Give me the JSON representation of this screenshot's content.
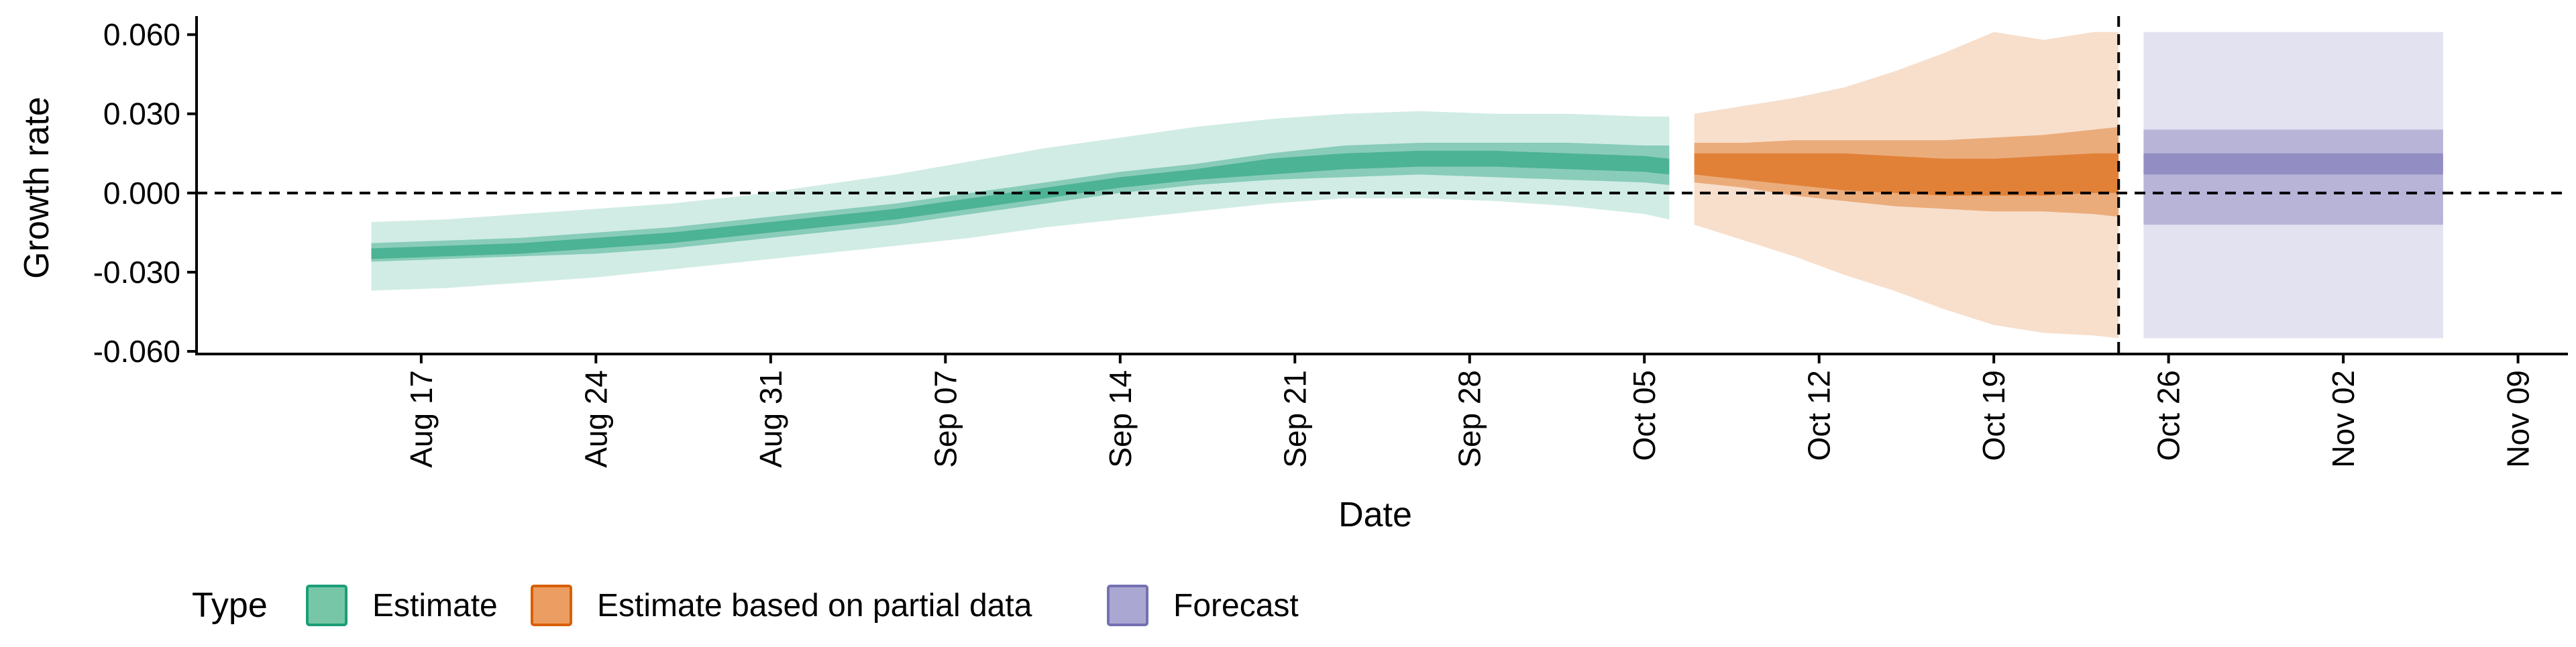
{
  "chart_data": {
    "type": "area",
    "xlabel": "Date",
    "ylabel": "Growth rate",
    "x_ticks": [
      "2020-08-17",
      "2020-08-24",
      "2020-08-31",
      "2020-09-07",
      "2020-09-14",
      "2020-09-21",
      "2020-09-28",
      "2020-10-05",
      "2020-10-12",
      "2020-10-19",
      "2020-10-26",
      "2020-11-02",
      "2020-11-09"
    ],
    "x_tick_labels": [
      "Aug 17",
      "Aug 24",
      "Aug 31",
      "Sep 07",
      "Sep 14",
      "Sep 21",
      "Sep 28",
      "Oct 05",
      "Oct 12",
      "Oct 19",
      "Oct 26",
      "Nov 02",
      "Nov 09"
    ],
    "y_ticks": [
      -0.06,
      -0.03,
      0.0,
      0.03,
      0.06
    ],
    "y_tick_labels": [
      "-0.060",
      "-0.030",
      "0.000",
      "0.030",
      "0.060"
    ],
    "xlim": [
      "2020-08-08",
      "2020-11-11"
    ],
    "ylim": [
      -0.061,
      0.066
    ],
    "reference_lines": {
      "horizontal_y": 0.0,
      "vertical_date": "2020-10-24"
    },
    "legend": {
      "title": "Type",
      "position": "bottom-left",
      "items": [
        {
          "label": "Estimate",
          "fill": "#78c6a8",
          "stroke": "#1b9e77"
        },
        {
          "label": "Estimate based on partial data",
          "fill": "#ec9e62",
          "stroke": "#d95f02"
        },
        {
          "label": "Forecast",
          "fill": "#aaa8d2",
          "stroke": "#7570b3"
        }
      ]
    },
    "grid": false,
    "series": [
      {
        "name": "Estimate",
        "color": "#1b9e77",
        "x": [
          "2020-08-15",
          "2020-08-18",
          "2020-08-21",
          "2020-08-24",
          "2020-08-27",
          "2020-08-30",
          "2020-09-02",
          "2020-09-05",
          "2020-09-08",
          "2020-09-11",
          "2020-09-14",
          "2020-09-17",
          "2020-09-20",
          "2020-09-23",
          "2020-09-26",
          "2020-09-29",
          "2020-10-02",
          "2020-10-05",
          "2020-10-06"
        ],
        "median": [
          -0.023,
          -0.022,
          -0.021,
          -0.019,
          -0.017,
          -0.014,
          -0.011,
          -0.008,
          -0.004,
          0.0,
          0.004,
          0.007,
          0.01,
          0.012,
          0.013,
          0.013,
          0.012,
          0.011,
          0.01
        ],
        "lower_20": [
          -0.025,
          -0.024,
          -0.023,
          -0.021,
          -0.019,
          -0.016,
          -0.013,
          -0.01,
          -0.006,
          -0.002,
          0.002,
          0.005,
          0.007,
          0.009,
          0.01,
          0.01,
          0.009,
          0.008,
          0.007
        ],
        "upper_20": [
          -0.021,
          -0.02,
          -0.019,
          -0.017,
          -0.015,
          -0.012,
          -0.009,
          -0.006,
          -0.002,
          0.002,
          0.006,
          0.009,
          0.013,
          0.015,
          0.016,
          0.016,
          0.015,
          0.014,
          0.013
        ],
        "lower_50": [
          -0.026,
          -0.025,
          -0.024,
          -0.023,
          -0.021,
          -0.018,
          -0.015,
          -0.012,
          -0.008,
          -0.004,
          0.0,
          0.003,
          0.005,
          0.006,
          0.007,
          0.006,
          0.005,
          0.004,
          0.003
        ],
        "upper_50": [
          -0.019,
          -0.018,
          -0.017,
          -0.015,
          -0.013,
          -0.01,
          -0.007,
          -0.004,
          0.0,
          0.004,
          0.008,
          0.011,
          0.015,
          0.018,
          0.019,
          0.019,
          0.019,
          0.018,
          0.018
        ],
        "lower_90": [
          -0.037,
          -0.036,
          -0.034,
          -0.032,
          -0.029,
          -0.026,
          -0.023,
          -0.02,
          -0.017,
          -0.013,
          -0.01,
          -0.007,
          -0.004,
          -0.002,
          -0.002,
          -0.003,
          -0.005,
          -0.008,
          -0.01
        ],
        "upper_90": [
          -0.011,
          -0.01,
          -0.008,
          -0.006,
          -0.004,
          -0.001,
          0.003,
          0.007,
          0.012,
          0.017,
          0.021,
          0.025,
          0.028,
          0.03,
          0.031,
          0.03,
          0.03,
          0.029,
          0.029
        ]
      },
      {
        "name": "Estimate based on partial data",
        "color": "#d95f02",
        "x": [
          "2020-10-07",
          "2020-10-09",
          "2020-10-11",
          "2020-10-13",
          "2020-10-15",
          "2020-10-17",
          "2020-10-19",
          "2020-10-21",
          "2020-10-23",
          "2020-10-24"
        ],
        "median": [
          0.011,
          0.01,
          0.009,
          0.008,
          0.007,
          0.006,
          0.006,
          0.007,
          0.008,
          0.008
        ],
        "lower_20": [
          0.007,
          0.005,
          0.003,
          0.001,
          0.0,
          -0.001,
          -0.001,
          -0.001,
          0.0,
          0.0
        ],
        "upper_20": [
          0.015,
          0.015,
          0.015,
          0.015,
          0.014,
          0.013,
          0.013,
          0.014,
          0.015,
          0.015
        ],
        "lower_50": [
          0.004,
          0.002,
          -0.001,
          -0.003,
          -0.005,
          -0.006,
          -0.007,
          -0.007,
          -0.008,
          -0.009
        ],
        "upper_50": [
          0.019,
          0.019,
          0.02,
          0.02,
          0.02,
          0.02,
          0.021,
          0.022,
          0.024,
          0.025
        ],
        "lower_90": [
          -0.012,
          -0.018,
          -0.024,
          -0.031,
          -0.037,
          -0.044,
          -0.05,
          -0.053,
          -0.054,
          -0.055
        ],
        "upper_90": [
          0.03,
          0.033,
          0.036,
          0.04,
          0.046,
          0.053,
          0.061,
          0.058,
          0.061,
          0.061
        ]
      },
      {
        "name": "Forecast",
        "color": "#7570b3",
        "x": [
          "2020-10-25",
          "2020-11-06"
        ],
        "median": [
          0.013,
          0.013
        ],
        "lower_20": [
          0.007,
          0.007
        ],
        "upper_20": [
          0.015,
          0.015
        ],
        "lower_50": [
          -0.012,
          -0.012
        ],
        "upper_50": [
          0.024,
          0.024
        ],
        "lower_90": [
          -0.055,
          -0.055
        ],
        "upper_90": [
          0.061,
          0.061
        ]
      }
    ]
  }
}
